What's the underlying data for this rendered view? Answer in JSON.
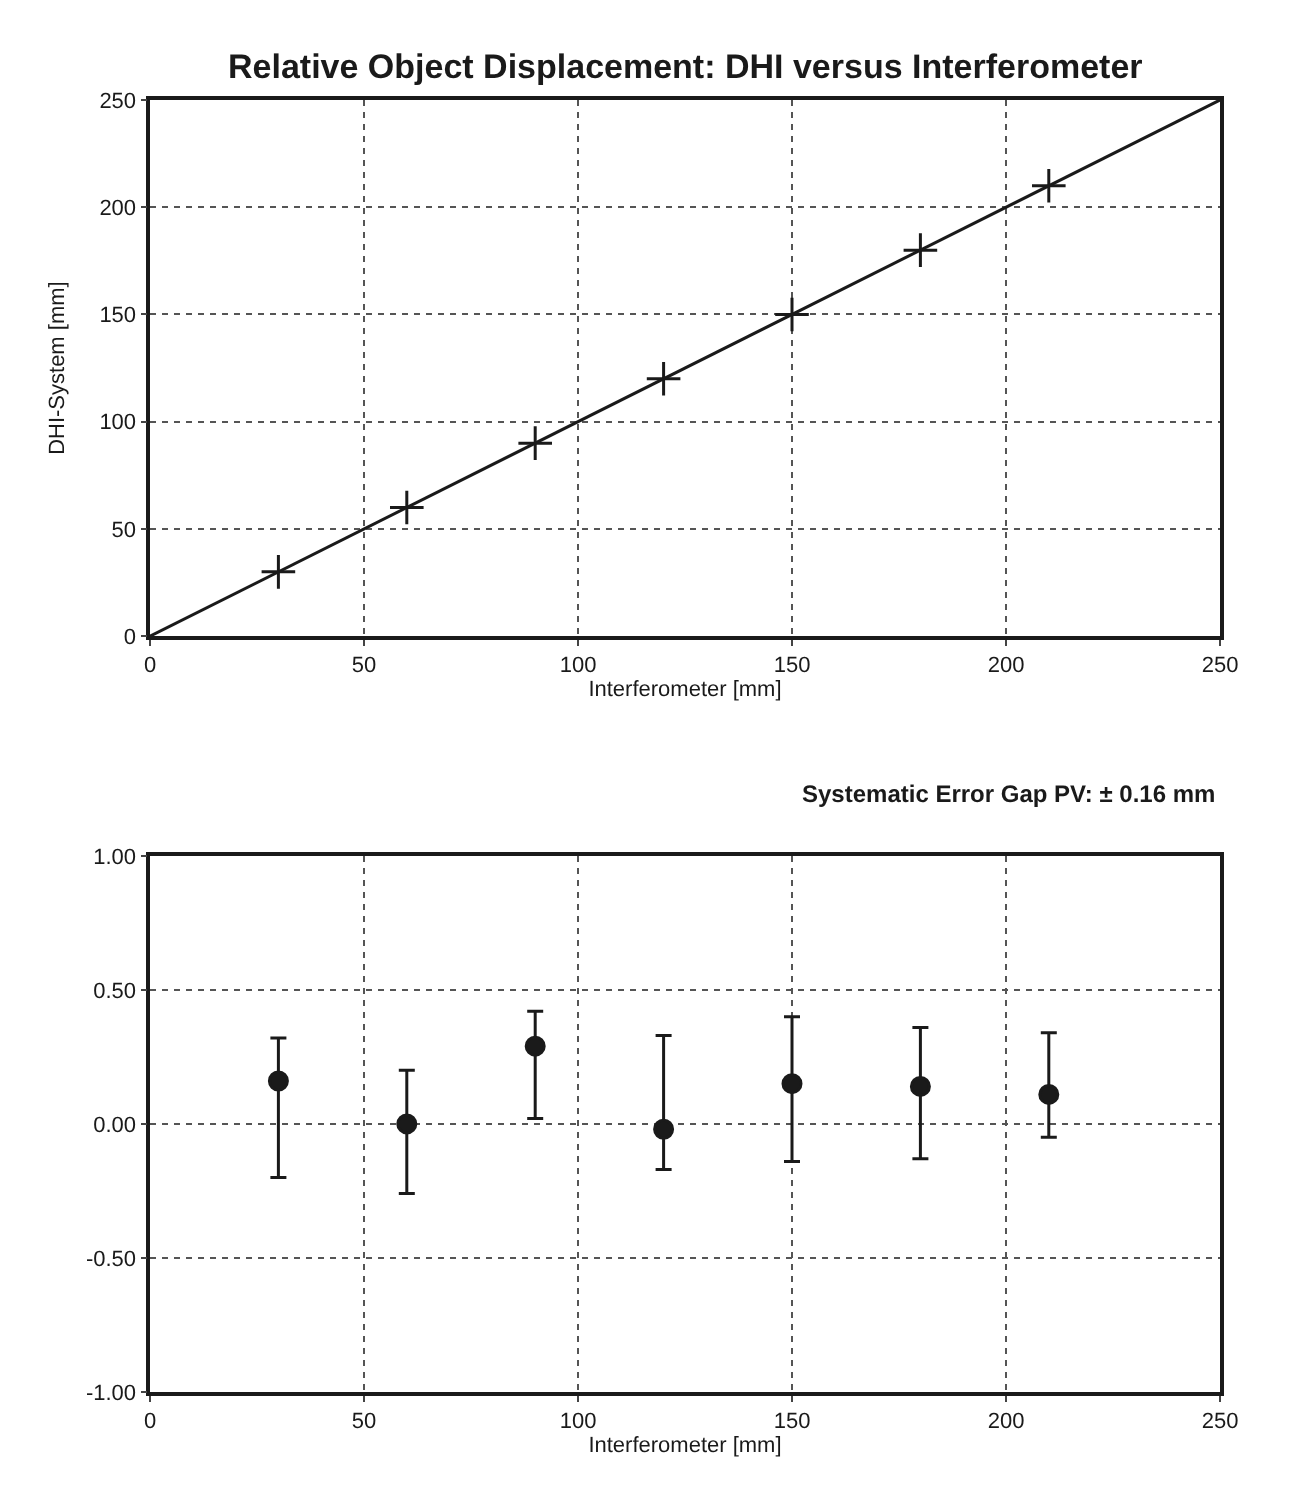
{
  "chart_data": [
    {
      "type": "line",
      "title": "Relative Object Displacement: DHI versus Interferometer",
      "xlabel": "Interferometer [mm]",
      "ylabel": "DHI-System [mm]",
      "xlim": [
        0,
        250
      ],
      "ylim": [
        0,
        250
      ],
      "xticks": [
        0,
        50,
        100,
        150,
        200,
        250
      ],
      "yticks": [
        0,
        50,
        100,
        150,
        200,
        250
      ],
      "grid": true,
      "series": [
        {
          "type": "line",
          "x": [
            0,
            250
          ],
          "values": [
            0,
            250
          ],
          "color": "#1a1a1a",
          "marker": "none",
          "line_style": "solid"
        },
        {
          "type": "scatter",
          "x": [
            30,
            60,
            90,
            120,
            150,
            180,
            210
          ],
          "values": [
            30,
            60,
            90,
            120,
            150,
            180,
            210
          ],
          "color": "#1a1a1a",
          "marker": "cross"
        }
      ]
    },
    {
      "type": "scatter",
      "xlabel": "Interferometer [mm]",
      "annotations": [
        "Systematic Error Gap PV: ± 0.16 mm"
      ],
      "xlim": [
        0,
        250
      ],
      "ylim": [
        -1.0,
        1.0
      ],
      "xticks": [
        0,
        50,
        100,
        150,
        200,
        250
      ],
      "yticks": [
        {
          "value": -1.0,
          "label": "-1.00"
        },
        {
          "value": -0.5,
          "label": "-0.50"
        },
        {
          "value": 0.0,
          "label": "0.00"
        },
        {
          "value": 0.5,
          "label": "0.50"
        },
        {
          "value": 1.0,
          "label": "1.00"
        }
      ],
      "grid": true,
      "marker": "circle",
      "series": [
        {
          "x": [
            30,
            60,
            90,
            120,
            150,
            180,
            210
          ],
          "values": [
            0.16,
            0.0,
            0.29,
            -0.02,
            0.15,
            0.14,
            0.11
          ],
          "color": "#1a1a1a",
          "errors": [
            [
              -0.2,
              0.32
            ],
            [
              -0.26,
              0.2
            ],
            [
              0.02,
              0.42
            ],
            [
              -0.17,
              0.33
            ],
            [
              -0.14,
              0.4
            ],
            [
              -0.13,
              0.36
            ],
            [
              -0.05,
              0.34
            ]
          ]
        }
      ]
    }
  ]
}
